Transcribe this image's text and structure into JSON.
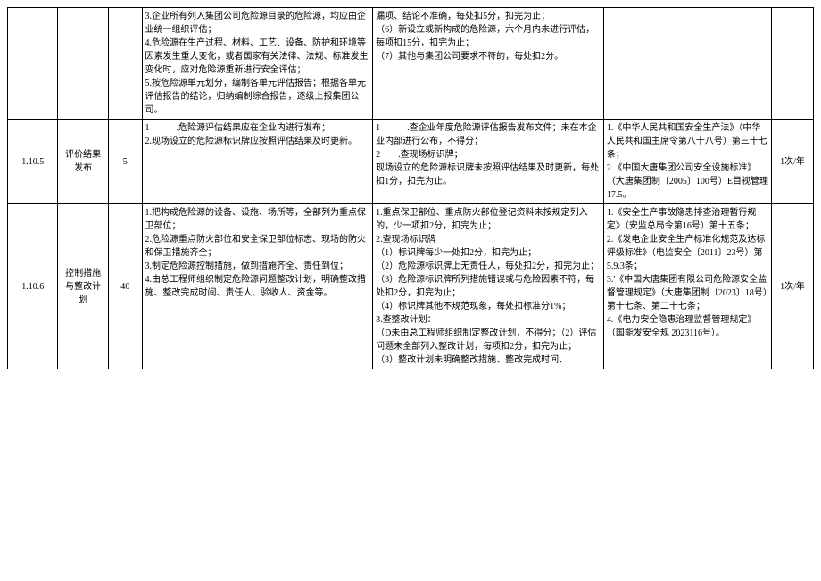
{
  "rows": [
    {
      "id": "",
      "name": "",
      "score": "",
      "requirement": "3.企业所有列入集团公司危险源目录的危险源，均应由企业统一组织评估；\n4.危险源在生产过程、材料、工艺、设备、防护和环境等因素发生重大变化，或者国家有关法律、法规、标准发生变化时，应对危险源重新进行安全评估；\n5.按危险源单元划分，编制各单元评估报告；根据各单元评估报告的结论，归纳编制综合报告，逐级上报集团公司。",
      "evaluation": "漏项、结论不准确，每处扣5分，扣完为止；\n（6）新设立或新构成的危险源，六个月内未进行评估，每项扣15分，扣完为止；\n（7）其他与集团公司要求不符的，每处扣2分。",
      "basis": "",
      "frequency": ""
    },
    {
      "id": "1.10.5",
      "name": "评价结果发布",
      "score": "5",
      "requirement": "1　　　.危险源评估结果应在企业内进行发布；\n2.现场设立的危险源标识牌应按照评估结果及时更新。",
      "evaluation": "1　　　.查企业年度危险源评估报告发布文件；未在本企业内部进行公布，不得分；\n2　　.查现场标识牌；\n现场设立的危险源标识牌未按照评估结果及时更新，每处扣1分，扣完为止。",
      "basis": "1.《中华人民共和国安全生产法》（中华人民共和国主席令第八十八号）第三十七条；\n2.《中国大唐集团公司安全设施标准》（大唐集团制〔2005〕100号）E目视管理17.5。",
      "frequency": "1次/年"
    },
    {
      "id": "1.10.6",
      "name": "控制措施与整改计划",
      "score": "40",
      "requirement": "1.把构成危险源的设备、设施、场所等，全部列为重点保卫部位；\n2.危险源重点防火部位和安全保卫部位标志、现场的防火和保卫措施齐全；\n3.制定危险源控制措施，做到措施齐全、责任到位；\n4.由总工程师组织制定危险源问题整改计划，明确整改措施、整改完成时间、责任人、验收人、资金等。",
      "evaluation": "1.重点保卫部位、重点防火部位登记资料未按规定列入的，少一项扣2分，扣完为止；\n2.查现场标识牌\n（1）标识牌每少一处扣2分，扣完为止；\n（2）危险源标识牌上无责任人，每处扣2分，扣完为止；\n（3）危险源标识牌所列措施错误或与危险因素不符，每处扣2分，扣完为止；\n（4）标识牌其他不规范现象，每处扣标准分1%；\n3.查整改计划：\n（D未由总工程师组织制定整改计划，不得分；（2）评估问题未全部列入整改计划，每项扣2分，扣完为止；\n（3）整改计划未明确整改措施、整改完成时间、",
      "basis": "1.《安全生产事故隐患排查治理暂行规定》（安监总局令第16号）第十五条；\n2.《发电企业安全生产标准化规范及达标评级标准》（电监安全〔2011〕23号）第5.9.3条；\n3.'《中国大唐集团有限公司危险源安全监督管理规定》（大唐集团制〔2023〕18号）第十七条、第二十七条；\n4.《电力安全隐患治理监督管理规定》（国能发安全规 2023116号）。",
      "frequency": "1次/年"
    }
  ]
}
